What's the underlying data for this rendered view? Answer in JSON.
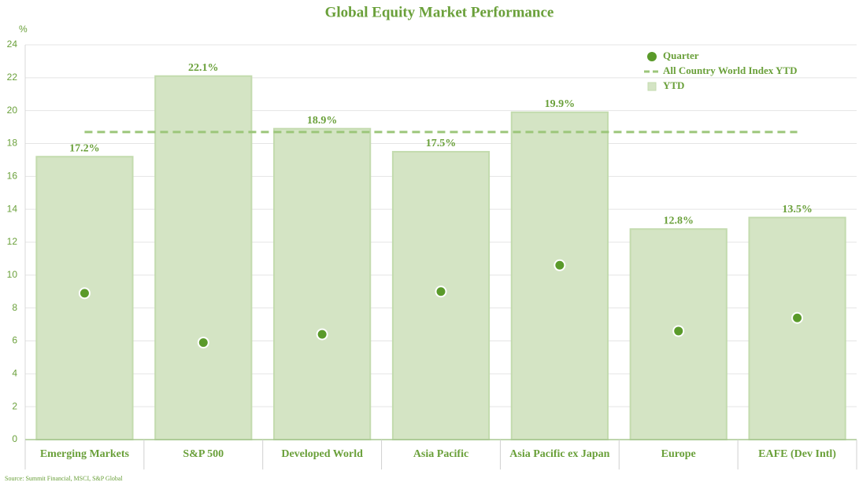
{
  "chart_data": {
    "type": "bar",
    "title": "Global Equity Market Performance",
    "y_label": "%",
    "source": "Source: Summit Financial, MSCI, S&P Global",
    "categories": [
      "Emerging Markets",
      "S&P 500",
      "Developed World",
      "Asia Pacific",
      "Asia Pacific ex Japan",
      "Europe",
      "EAFE (Dev Intl)"
    ],
    "series": [
      {
        "name": "YTD",
        "type": "bar",
        "color": "#d4e4c4",
        "values": [
          17.2,
          22.1,
          18.9,
          17.5,
          19.9,
          12.8,
          13.5
        ],
        "value_labels": [
          "17.2%",
          "22.1%",
          "18.9%",
          "17.5%",
          "19.9%",
          "12.8%",
          "13.5%"
        ]
      },
      {
        "name": "Quarter",
        "type": "scatter",
        "color": "#5a9a2a",
        "values": [
          8.9,
          5.9,
          6.4,
          9.0,
          10.6,
          6.6,
          7.4
        ]
      },
      {
        "name": "All Country World Index YTD",
        "type": "line",
        "color": "#9cc67a",
        "values": [
          18.7,
          18.7,
          18.7,
          18.7,
          18.7,
          18.7,
          18.7
        ]
      }
    ],
    "legend_order": [
      1,
      2,
      0
    ],
    "legend": "upper right",
    "ylim": [
      0,
      24
    ],
    "yticks": [
      0,
      2,
      4,
      6,
      8,
      10,
      12,
      14,
      16,
      18,
      20,
      22,
      24
    ],
    "grid": true
  }
}
